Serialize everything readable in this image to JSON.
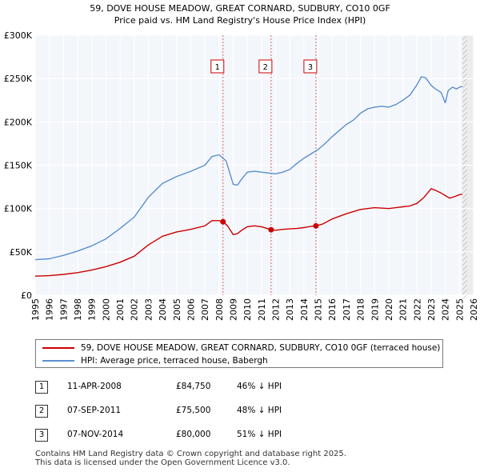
{
  "title": "59, DOVE HOUSE MEADOW, GREAT CORNARD, SUDBURY, CO10 0GF",
  "subtitle": "Price paid vs. HM Land Registry's House Price Index (HPI)",
  "chart_data": {
    "type": "line",
    "title": "59, DOVE HOUSE MEADOW, GREAT CORNARD, SUDBURY, CO10 0GF",
    "subtitle": "Price paid vs. HM Land Registry's House Price Index (HPI)",
    "xlim": [
      1995,
      2026
    ],
    "ylim": [
      0,
      300000
    ],
    "y_ticks": [
      0,
      50000,
      100000,
      150000,
      200000,
      250000,
      300000
    ],
    "y_tick_labels": [
      "£0",
      "£50K",
      "£100K",
      "£150K",
      "£200K",
      "£250K",
      "£300K"
    ],
    "x_ticks": [
      1995,
      1996,
      1997,
      1998,
      1999,
      2000,
      2001,
      2002,
      2003,
      2004,
      2005,
      2006,
      2007,
      2008,
      2009,
      2010,
      2011,
      2012,
      2013,
      2014,
      2015,
      2016,
      2017,
      2018,
      2019,
      2020,
      2021,
      2022,
      2023,
      2024,
      2025,
      2026
    ],
    "x_tick_labels": [
      "1995",
      "1996",
      "1997",
      "1998",
      "1999",
      "2000",
      "2001",
      "2002",
      "2003",
      "2004",
      "2005",
      "2006",
      "2007",
      "2008",
      "2009",
      "2010",
      "2011",
      "2012",
      "2013",
      "2014",
      "2015",
      "2016",
      "2017",
      "2018",
      "2019",
      "2020",
      "2021",
      "2022",
      "2023",
      "2024",
      "2025",
      "2026"
    ],
    "grid": true,
    "forecast_start": 2025.2,
    "series": [
      {
        "name": "59, DOVE HOUSE MEADOW, GREAT CORNARD, SUDBURY, CO10 0GF (terraced house)",
        "color": "#cc0000",
        "x": [
          1995.0,
          1996.0,
          1997.0,
          1998.0,
          1999.0,
          2000.0,
          2001.0,
          2002.0,
          2003.0,
          2004.0,
          2005.0,
          2006.0,
          2007.0,
          2007.5,
          2008.0,
          2008.28,
          2008.6,
          2009.0,
          2009.3,
          2009.6,
          2010.0,
          2010.5,
          2011.0,
          2011.4,
          2011.68,
          2012.0,
          2012.5,
          2013.0,
          2013.5,
          2014.0,
          2014.5,
          2014.85,
          2015.3,
          2016.0,
          2017.0,
          2018.0,
          2019.0,
          2020.0,
          2020.5,
          2021.0,
          2021.5,
          2022.0,
          2022.5,
          2023.0,
          2023.3,
          2023.7,
          2024.0,
          2024.3,
          2024.7,
          2025.0,
          2025.2
        ],
        "values": [
          22000,
          22500,
          24000,
          26000,
          29000,
          33000,
          38000,
          45000,
          58000,
          68000,
          73000,
          76000,
          80000,
          86000,
          86000,
          84750,
          80000,
          70000,
          71000,
          75000,
          79000,
          80000,
          79000,
          77000,
          75500,
          75000,
          76000,
          76500,
          77000,
          78000,
          79500,
          80000,
          82000,
          88000,
          94000,
          99000,
          101000,
          100000,
          101000,
          102000,
          103000,
          106000,
          113000,
          123000,
          121000,
          118000,
          115000,
          112000,
          114000,
          116000,
          116500
        ]
      },
      {
        "name": "HPI: Average price, terraced house, Babergh",
        "color": "#5b8fcf",
        "x": [
          1995.0,
          1996.0,
          1997.0,
          1998.0,
          1999.0,
          2000.0,
          2001.0,
          2002.0,
          2003.0,
          2004.0,
          2005.0,
          2006.0,
          2007.0,
          2007.5,
          2008.0,
          2008.5,
          2009.0,
          2009.3,
          2009.6,
          2010.0,
          2010.5,
          2011.0,
          2011.5,
          2012.0,
          2012.5,
          2013.0,
          2013.5,
          2014.0,
          2014.5,
          2015.0,
          2015.5,
          2016.0,
          2016.5,
          2017.0,
          2017.5,
          2018.0,
          2018.5,
          2019.0,
          2019.5,
          2020.0,
          2020.5,
          2021.0,
          2021.5,
          2022.0,
          2022.3,
          2022.6,
          2023.0,
          2023.3,
          2023.7,
          2024.0,
          2024.2,
          2024.5,
          2024.8,
          2025.0,
          2025.2
        ],
        "values": [
          41000,
          42000,
          46000,
          51000,
          57000,
          65000,
          77000,
          90000,
          113000,
          129000,
          137000,
          143000,
          150000,
          160000,
          162000,
          155000,
          128000,
          127000,
          134000,
          142000,
          143000,
          142000,
          141000,
          140000,
          142000,
          145000,
          152000,
          158000,
          163000,
          168000,
          175000,
          183000,
          190000,
          197000,
          202000,
          210000,
          215000,
          217000,
          218000,
          217000,
          220000,
          225000,
          231000,
          243000,
          252000,
          251000,
          242000,
          238000,
          234000,
          222000,
          236000,
          240000,
          238000,
          240000,
          241000
        ]
      }
    ],
    "sales": [
      {
        "label": "1",
        "x": 2008.28,
        "value": 84750
      },
      {
        "label": "2",
        "x": 2011.68,
        "value": 75500
      },
      {
        "label": "3",
        "x": 2014.85,
        "value": 80000
      }
    ]
  },
  "legend": {
    "property_label": "59, DOVE HOUSE MEADOW, GREAT CORNARD, SUDBURY, CO10 0GF (terraced house)",
    "hpi_label": "HPI: Average price, terraced house, Babergh",
    "property_color": "#cc0000",
    "hpi_color": "#5b8fcf"
  },
  "sales_table": [
    {
      "num": "1",
      "date": "11-APR-2008",
      "price": "£84,750",
      "diff": "46% ↓ HPI"
    },
    {
      "num": "2",
      "date": "07-SEP-2011",
      "price": "£75,500",
      "diff": "48% ↓ HPI"
    },
    {
      "num": "3",
      "date": "07-NOV-2014",
      "price": "£80,000",
      "diff": "51% ↓ HPI"
    }
  ],
  "footer": {
    "line1": "Contains HM Land Registry data © Crown copyright and database right 2025.",
    "line2": "This data is licensed under the Open Government Licence v3.0."
  }
}
